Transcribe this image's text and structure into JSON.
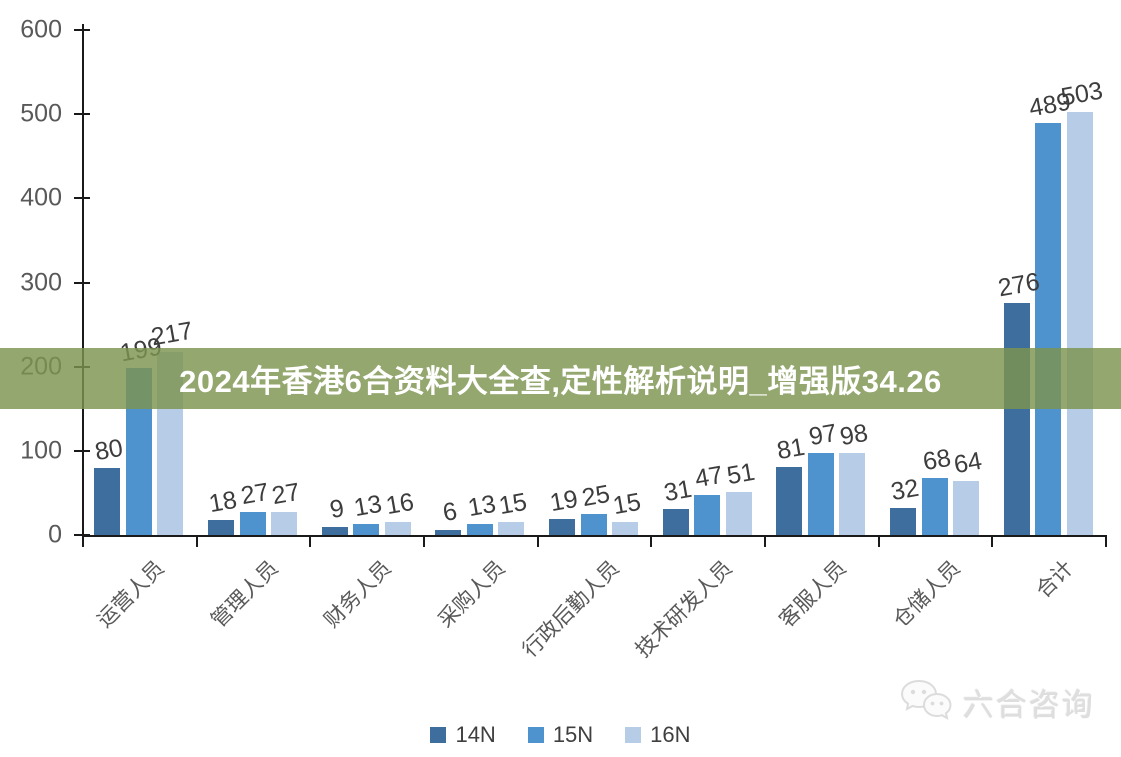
{
  "banner": {
    "text": "2024年香港6合资料大全查,定性解析说明_增强版34.26",
    "background_color": "#7c944f",
    "background_opacity": 0.82,
    "text_color": "#ffffff"
  },
  "watermark": {
    "text": "六合咨询",
    "icon": "wechat-chat-bubbles-icon",
    "color": "#dedede"
  },
  "chart_data": {
    "type": "bar",
    "title": "",
    "xlabel": "",
    "ylabel": "",
    "categories": [
      "运营人员",
      "管理人员",
      "财务人员",
      "采购人员",
      "行政后勤人员",
      "技术研发人员",
      "客服人员",
      "仓储人员",
      "合计"
    ],
    "series": [
      {
        "name": "14N",
        "color": "#3e6e9e",
        "values": [
          80,
          18,
          9,
          6,
          19,
          31,
          81,
          32,
          276
        ]
      },
      {
        "name": "15N",
        "color": "#4f93ce",
        "values": [
          199,
          27,
          13,
          13,
          25,
          47,
          97,
          68,
          489
        ]
      },
      {
        "name": "16N",
        "color": "#b7cde7",
        "values": [
          217,
          27,
          16,
          15,
          15,
          51,
          98,
          64,
          503
        ]
      }
    ],
    "ylim": [
      0,
      600
    ],
    "yticks": [
      0,
      100,
      200,
      300,
      400,
      500,
      600
    ],
    "grid": false,
    "legend_position": "bottom",
    "value_labels_shown": true,
    "axis_color": "#1a1a1a",
    "tick_label_color": "#595959",
    "value_label_color": "#3d3d3d"
  }
}
